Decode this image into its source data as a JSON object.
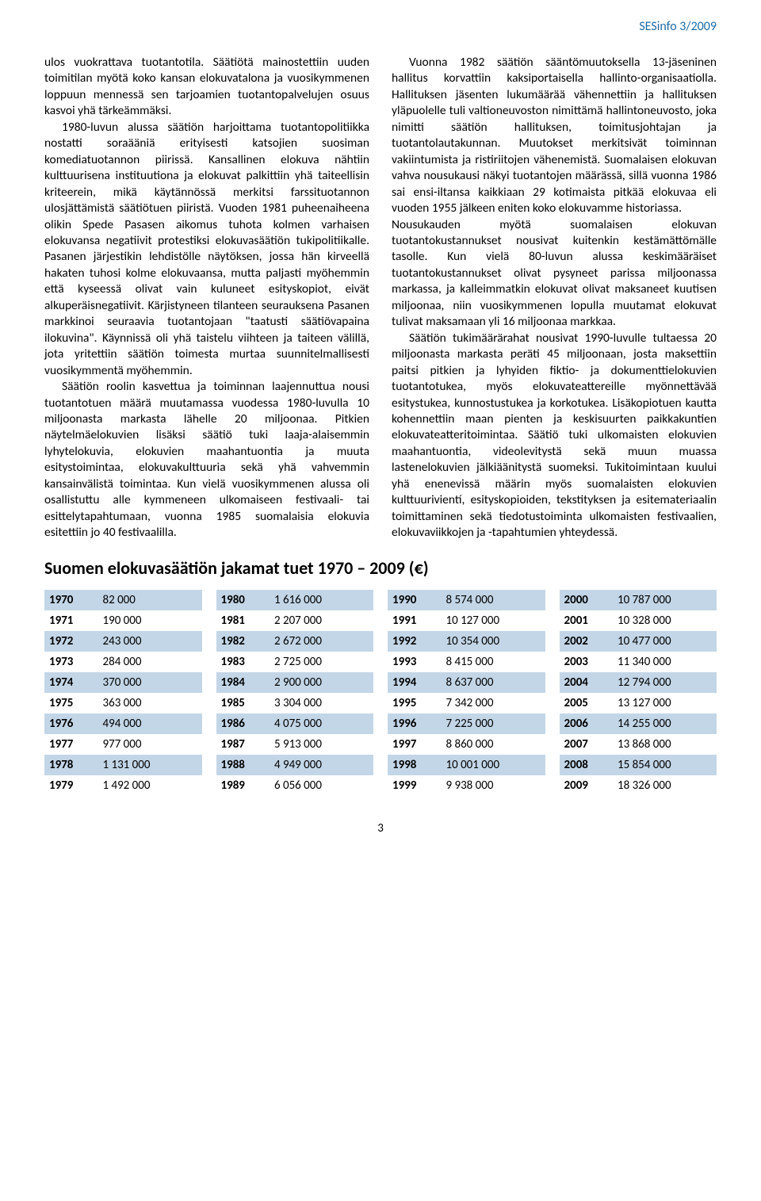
{
  "header": {
    "journal": "SESinfo 3/2009"
  },
  "body": {
    "left": {
      "p1": "ulos vuokrattava tuotantotila. Säätiötä mainostettiin uuden toimitilan myötä koko kansan elokuvatalona ja vuosikymmenen loppuun mennessä sen tarjoamien tuotantopalvelujen osuus kasvoi yhä tärkeämmäksi.",
      "p2": "1980-luvun alussa säätiön harjoittama tuotantopolitiikka nostatti soraääniä erityisesti katsojien suosiman komediatuotannon piirissä. Kansallinen elokuva nähtiin kulttuurisena instituutiona ja elokuvat palkittiin yhä taiteellisin kriteerein, mikä käytännössä merkitsi farssituotannon ulosjättämistä säätiötuen piiristä. Vuoden 1981 puheenaiheena olikin Spede Pasasen aikomus tuhota kolmen varhaisen elokuvansa negatiivit protestiksi elokuvasäätiön tukipolitiikalle. Pasanen järjestikin lehdistölle näytöksen, jossa hän kirveellä hakaten tuhosi kolme elokuvaansa, mutta paljasti myöhemmin että kyseessä olivat vain kuluneet esityskopiot, eivät alkuperäisnegatiivit. Kärjistyneen tilanteen seurauksena Pasanen markkinoi seuraavia tuotantojaan \"taatusti säätiövapaina ilokuvina\". Käynnissä oli yhä taistelu viihteen ja taiteen välillä, jota yritettiin säätiön toimesta murtaa suunnitelmallisesti vuosikymmentä myöhemmin.",
      "p3": "Säätiön roolin kasvettua ja toiminnan laajennuttua nousi tuotantotuen määrä muutamassa vuodessa 1980-luvulla 10 miljoonasta markasta lähelle 20 miljoonaa. Pitkien näytelmäelokuvien lisäksi säätiö tuki laaja-alaisemmin lyhytelokuvia, elokuvien maahantuontia ja muuta esitystoimintaa, elokuvakulttuuria sekä yhä vahvemmin kansainvälistä toimintaa. Kun vielä vuosikymmenen alussa oli osallistuttu alle kymmeneen ulkomaiseen festivaali- tai esittelytapahtumaan, vuonna 1985 suomalaisia elokuvia esitettiin jo 40 festivaalilla."
    },
    "right": {
      "p1": "Vuonna 1982 säätiön sääntömuutoksella 13-jäseninen hallitus korvattiin kaksiportaisella hallinto-organisaatiolla. Hallituksen jäsenten lukumäärää vähennettiin ja hallituksen yläpuolelle tuli valtioneuvoston nimittämä hallintoneuvosto, joka nimitti säätiön hallituksen, toimitusjohtajan ja tuotantolautakunnan. Muutokset merkitsivät toiminnan vakiintumista ja ristiriitojen vähenemistä. Suomalaisen elokuvan vahva nousukausi näkyi tuotantojen määrässä, sillä vuonna 1986 sai ensi-iltansa kaikkiaan 29 kotimaista pitkää elokuvaa eli vuoden 1955 jälkeen eniten koko elokuvamme historiassa.",
      "p2": "Nousukauden myötä suomalaisen elokuvan tuotantokustannukset nousivat kuitenkin kestämättömälle tasolle. Kun vielä 80-luvun alussa keskimääräiset tuotantokustannukset olivat pysyneet parissa miljoonassa markassa, ja kalleimmatkin elokuvat olivat maksaneet kuutisen miljoonaa, niin vuosikymmenen lopulla muutamat elokuvat tulivat maksamaan yli 16 miljoonaa markkaa.",
      "p3": "Säätiön tukimäärärahat nousivat 1990-luvulle tultaessa 20 miljoonasta markasta peräti 45 miljoonaan, josta maksettiin paitsi pitkien ja lyhyiden fiktio- ja dokumenttielokuvien tuotantotukea, myös elokuvateattereille myönnettävää esitystukea, kunnostustukea ja korkotukea. Lisäkopiotuen kautta kohennettiin maan pienten ja keskisuurten paikkakuntien elokuvateatteritoimintaa. Säätiö tuki ulkomaisten elokuvien maahantuontia, videolevitystä sekä muun muassa lastenelokuvien jälkiäänitystä suomeksi. Tukitoimintaan kuului yhä enenevissä määrin myös suomalaisten elokuvien kulttuurivientí, esityskopioiden, tekstityksen ja esitemateriaalin toimittaminen sekä tiedotustoiminta ulkomaisten festivaalien, elokuvaviikkojen ja -tapahtumien yhteydessä."
    }
  },
  "section_title": "Suomen elokuvasäätiön jakamat tuet 1970 – 2009 (€)",
  "tables": {
    "row_alt_color": "#c3d6e7",
    "decades": [
      [
        {
          "year": "1970",
          "val": "82 000"
        },
        {
          "year": "1971",
          "val": "190 000"
        },
        {
          "year": "1972",
          "val": "243 000"
        },
        {
          "year": "1973",
          "val": "284 000"
        },
        {
          "year": "1974",
          "val": "370 000"
        },
        {
          "year": "1975",
          "val": "363 000"
        },
        {
          "year": "1976",
          "val": "494 000"
        },
        {
          "year": "1977",
          "val": "977 000"
        },
        {
          "year": "1978",
          "val": "1 131 000"
        },
        {
          "year": "1979",
          "val": "1 492 000"
        }
      ],
      [
        {
          "year": "1980",
          "val": "1 616 000"
        },
        {
          "year": "1981",
          "val": "2 207 000"
        },
        {
          "year": "1982",
          "val": "2 672 000"
        },
        {
          "year": "1983",
          "val": "2 725 000"
        },
        {
          "year": "1984",
          "val": "2 900 000"
        },
        {
          "year": "1985",
          "val": "3 304 000"
        },
        {
          "year": "1986",
          "val": "4 075 000"
        },
        {
          "year": "1987",
          "val": "5 913 000"
        },
        {
          "year": "1988",
          "val": "4 949 000"
        },
        {
          "year": "1989",
          "val": "6 056 000"
        }
      ],
      [
        {
          "year": "1990",
          "val": "8 574 000"
        },
        {
          "year": "1991",
          "val": "10 127 000"
        },
        {
          "year": "1992",
          "val": "10 354 000"
        },
        {
          "year": "1993",
          "val": "8 415 000"
        },
        {
          "year": "1994",
          "val": "8 637 000"
        },
        {
          "year": "1995",
          "val": "7 342 000"
        },
        {
          "year": "1996",
          "val": "7 225 000"
        },
        {
          "year": "1997",
          "val": "8 860 000"
        },
        {
          "year": "1998",
          "val": "10 001 000"
        },
        {
          "year": "1999",
          "val": "9 938 000"
        }
      ],
      [
        {
          "year": "2000",
          "val": "10 787 000"
        },
        {
          "year": "2001",
          "val": "10 328 000"
        },
        {
          "year": "2002",
          "val": "10 477 000"
        },
        {
          "year": "2003",
          "val": "11 340 000"
        },
        {
          "year": "2004",
          "val": "12 794 000"
        },
        {
          "year": "2005",
          "val": "13 127 000"
        },
        {
          "year": "2006",
          "val": "14 255 000"
        },
        {
          "year": "2007",
          "val": "13 868 000"
        },
        {
          "year": "2008",
          "val": "15 854 000"
        },
        {
          "year": "2009",
          "val": "18 326 000"
        }
      ]
    ]
  },
  "page_number": "3"
}
